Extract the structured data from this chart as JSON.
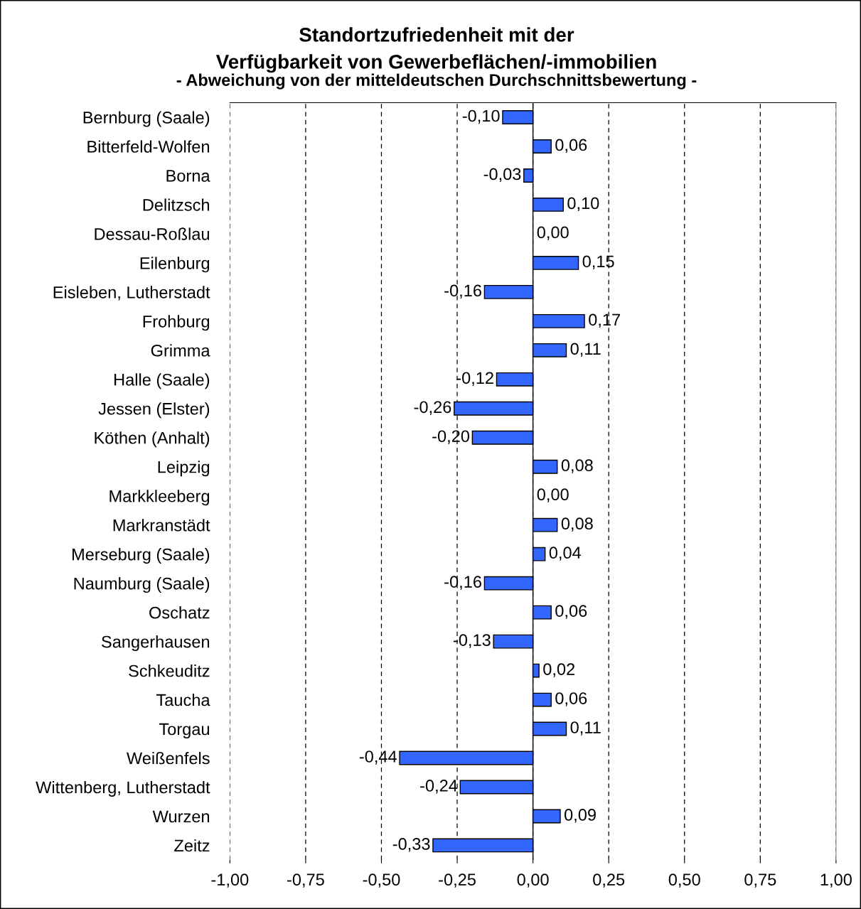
{
  "chart_data": {
    "type": "bar",
    "orientation": "horizontal",
    "title": "Standortzufriedenheit mit der\nVerfügbarkeit von Gewerbeflächen/-immobilien",
    "subtitle": "- Abweichung von der mitteldeutschen Durchschnittsbewertung -",
    "categories": [
      "Bernburg (Saale)",
      "Bitterfeld-Wolfen",
      "Borna",
      "Delitzsch",
      "Dessau-Roßlau",
      "Eilenburg",
      "Eisleben, Lutherstadt",
      "Frohburg",
      "Grimma",
      "Halle (Saale)",
      "Jessen (Elster)",
      "Köthen (Anhalt)",
      "Leipzig",
      "Markkleeberg",
      "Markranstädt",
      "Merseburg (Saale)",
      "Naumburg (Saale)",
      "Oschatz",
      "Sangerhausen",
      "Schkeuditz",
      "Taucha",
      "Torgau",
      "Weißenfels",
      "Wittenberg, Lutherstadt",
      "Wurzen",
      "Zeitz"
    ],
    "values": [
      -0.1,
      0.06,
      -0.03,
      0.1,
      0.0,
      0.15,
      -0.16,
      0.17,
      0.11,
      -0.12,
      -0.26,
      -0.2,
      0.08,
      0.0,
      0.08,
      0.04,
      -0.16,
      0.06,
      -0.13,
      0.02,
      0.06,
      0.11,
      -0.44,
      -0.24,
      0.09,
      -0.33
    ],
    "value_labels": [
      "-0,10",
      "0,06",
      "-0,03",
      "0,10",
      "0,00",
      "0,15",
      "-0,16",
      "0,17",
      "0,11",
      "-0,12",
      "-0,26",
      "-0,20",
      "0,08",
      "0,00",
      "0,08",
      "0,04",
      "-0,16",
      "0,06",
      "-0,13",
      "0,02",
      "0,06",
      "0,11",
      "-0,44",
      "-0,24",
      "0,09",
      "-0,33"
    ],
    "color": "#3366ff",
    "xlim": [
      -1,
      1
    ],
    "xticks": [
      {
        "value": -1,
        "label": "-1,00"
      },
      {
        "value": -0.75,
        "label": "-0,75"
      },
      {
        "value": -0.5,
        "label": "-0,50"
      },
      {
        "value": -0.25,
        "label": "-0,25"
      },
      {
        "value": 0,
        "label": "0,00"
      },
      {
        "value": 0.25,
        "label": "0,25"
      },
      {
        "value": 0.5,
        "label": "0,50"
      },
      {
        "value": 0.75,
        "label": "0,75"
      },
      {
        "value": 1,
        "label": "1,00"
      }
    ],
    "grid": "x",
    "legend": false
  }
}
